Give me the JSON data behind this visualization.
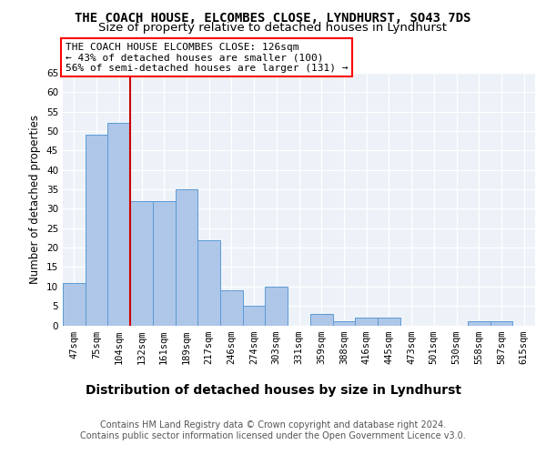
{
  "title": "THE COACH HOUSE, ELCOMBES CLOSE, LYNDHURST, SO43 7DS",
  "subtitle": "Size of property relative to detached houses in Lyndhurst",
  "xlabel": "Distribution of detached houses by size in Lyndhurst",
  "ylabel": "Number of detached properties",
  "bins": [
    "47sqm",
    "75sqm",
    "104sqm",
    "132sqm",
    "161sqm",
    "189sqm",
    "217sqm",
    "246sqm",
    "274sqm",
    "303sqm",
    "331sqm",
    "359sqm",
    "388sqm",
    "416sqm",
    "445sqm",
    "473sqm",
    "501sqm",
    "530sqm",
    "558sqm",
    "587sqm",
    "615sqm"
  ],
  "values": [
    11,
    49,
    52,
    32,
    32,
    35,
    22,
    9,
    5,
    10,
    0,
    3,
    1,
    2,
    2,
    0,
    0,
    0,
    1,
    1,
    0
  ],
  "bar_color": "#aec6e8",
  "bar_edge_color": "#5b9bd5",
  "property_size": "126sqm",
  "annotation_text": "THE COACH HOUSE ELCOMBES CLOSE: 126sqm\n← 43% of detached houses are smaller (100)\n56% of semi-detached houses are larger (131) →",
  "red_line_color": "#cc0000",
  "ylim": [
    0,
    65
  ],
  "yticks": [
    0,
    5,
    10,
    15,
    20,
    25,
    30,
    35,
    40,
    45,
    50,
    55,
    60,
    65
  ],
  "footer_line1": "Contains HM Land Registry data © Crown copyright and database right 2024.",
  "footer_line2": "Contains public sector information licensed under the Open Government Licence v3.0.",
  "bg_color": "#edf2f9",
  "fig_bg_color": "#ffffff",
  "title_fontsize": 10,
  "subtitle_fontsize": 9.5,
  "xlabel_fontsize": 10,
  "ylabel_fontsize": 8.5,
  "tick_fontsize": 7.5,
  "footer_fontsize": 7,
  "annotation_fontsize": 8
}
